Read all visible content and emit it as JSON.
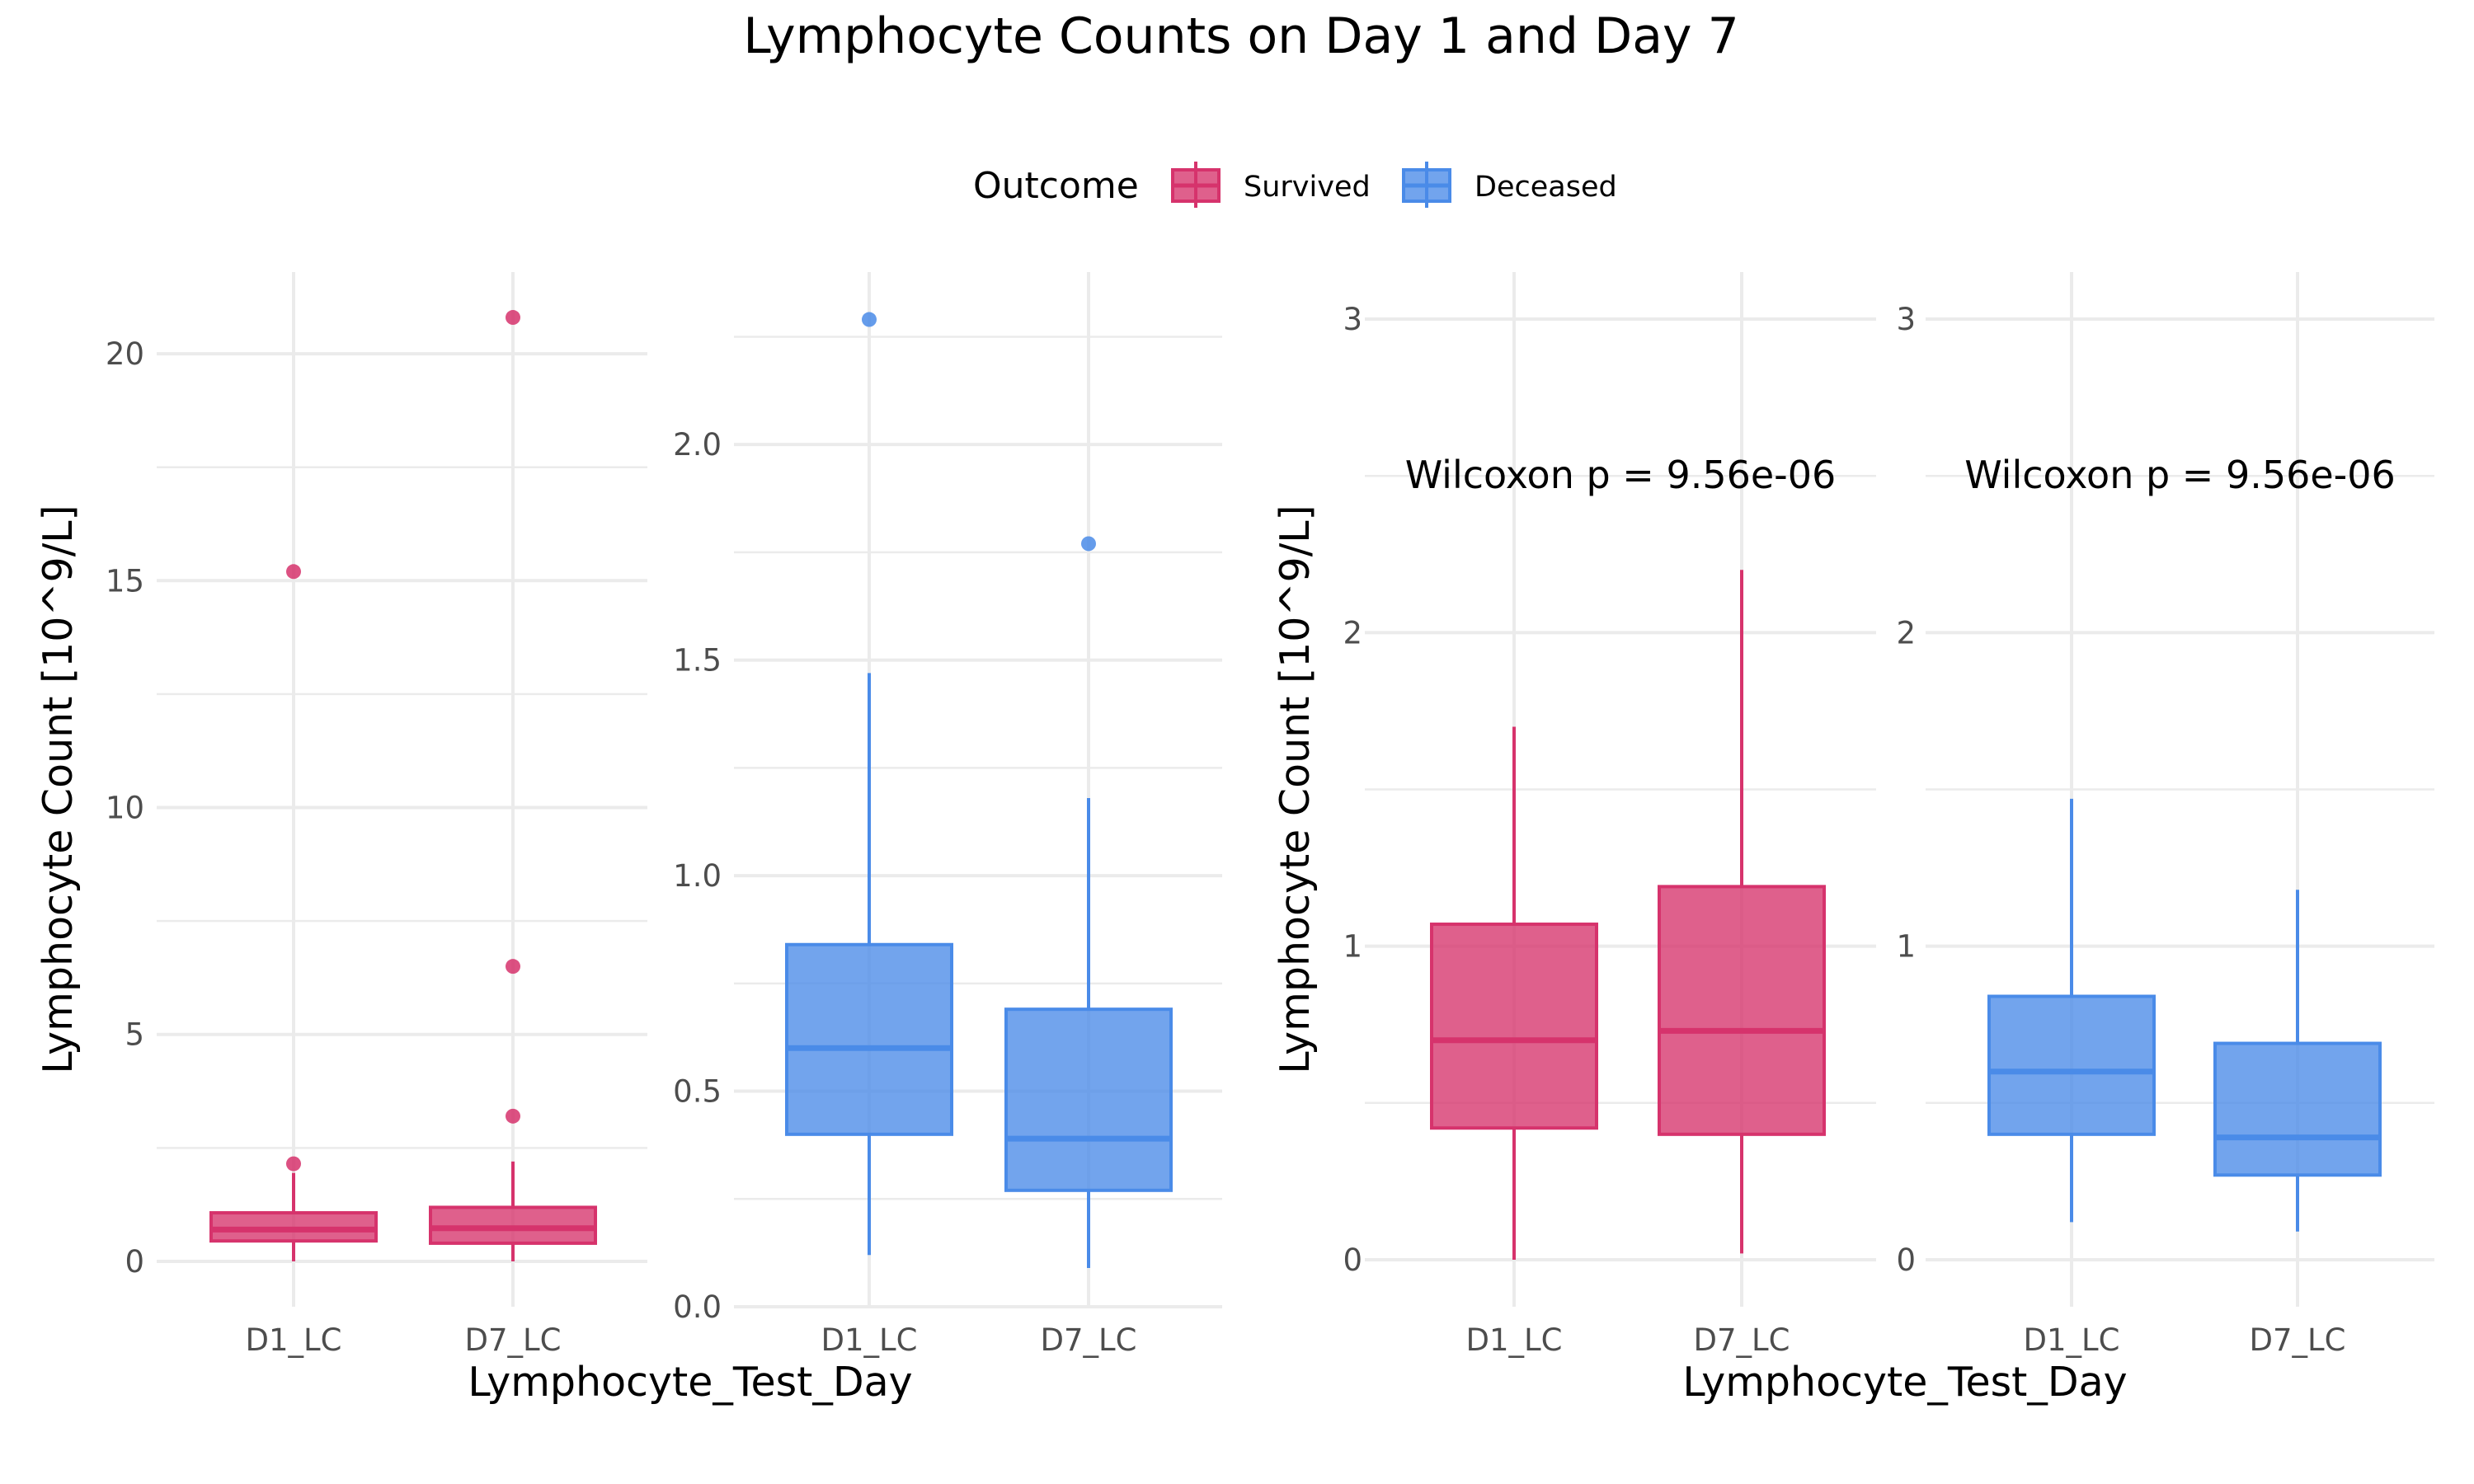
{
  "figure": {
    "title": "Lymphocyte Counts on Day 1 and Day 7",
    "legend": {
      "title": "Outcome",
      "position": "top",
      "items": [
        {
          "label": "Survived",
          "color": "#D6336C"
        },
        {
          "label": "Deceased",
          "color": "#4A8BE8"
        }
      ]
    }
  },
  "chart_data": [
    {
      "type": "box",
      "ylabel": "Lymphocyte Count [10^9/L]",
      "xlabel": "",
      "ylim": [
        -1,
        21.8
      ],
      "yticks": [
        0,
        5,
        10,
        15,
        20
      ],
      "grid": true,
      "color": "#D6336C",
      "annotation": "",
      "categories": [
        "D1_LC",
        "D7_LC"
      ],
      "boxes": [
        {
          "category": "D1_LC",
          "q1": 0.45,
          "median": 0.7,
          "q3": 1.07,
          "whisker_low": 0,
          "whisker_high": 1.95,
          "outliers": [
            2.15,
            15.2
          ]
        },
        {
          "category": "D7_LC",
          "q1": 0.4,
          "median": 0.73,
          "q3": 1.19,
          "whisker_low": 0,
          "whisker_high": 2.2,
          "outliers": [
            3.2,
            6.5,
            20.8
          ]
        }
      ]
    },
    {
      "type": "box",
      "ylabel": "",
      "xlabel": "",
      "ylim": [
        0,
        2.4
      ],
      "yticks": [
        0.0,
        0.5,
        1.0,
        1.5,
        2.0
      ],
      "ytick_labels": [
        "0.0",
        "0.5",
        "1.0",
        "1.5",
        "2.0"
      ],
      "grid": true,
      "color": "#4A8BE8",
      "annotation": "",
      "categories": [
        "D1_LC",
        "D7_LC"
      ],
      "boxes": [
        {
          "category": "D1_LC",
          "q1": 0.4,
          "median": 0.6,
          "q3": 0.84,
          "whisker_low": 0.12,
          "whisker_high": 1.47,
          "outliers": [
            2.29
          ]
        },
        {
          "category": "D7_LC",
          "q1": 0.27,
          "median": 0.39,
          "q3": 0.69,
          "whisker_low": 0.09,
          "whisker_high": 1.18,
          "outliers": [
            1.77
          ]
        }
      ]
    },
    {
      "type": "box",
      "ylabel": "Lymphocyte Count [10^9/L]",
      "xlabel": "",
      "ylim": [
        -0.15,
        3.15
      ],
      "yticks": [
        0,
        1,
        2,
        3
      ],
      "grid": true,
      "color": "#D6336C",
      "annotation": "Wilcoxon p = 9.56e-06",
      "annotation_y": 2.5,
      "categories": [
        "D1_LC",
        "D7_LC"
      ],
      "boxes": [
        {
          "category": "D1_LC",
          "q1": 0.42,
          "median": 0.7,
          "q3": 1.07,
          "whisker_low": 0,
          "whisker_high": 1.7,
          "outliers": []
        },
        {
          "category": "D7_LC",
          "q1": 0.4,
          "median": 0.73,
          "q3": 1.19,
          "whisker_low": 0.02,
          "whisker_high": 2.2,
          "outliers": []
        }
      ]
    },
    {
      "type": "box",
      "ylabel": "",
      "xlabel": "",
      "ylim": [
        -0.15,
        3.15
      ],
      "yticks": [
        0,
        1,
        2,
        3
      ],
      "grid": true,
      "color": "#4A8BE8",
      "annotation": "Wilcoxon p = 9.56e-06",
      "annotation_y": 2.5,
      "categories": [
        "D1_LC",
        "D7_LC"
      ],
      "boxes": [
        {
          "category": "D1_LC",
          "q1": 0.4,
          "median": 0.6,
          "q3": 0.84,
          "whisker_low": 0.12,
          "whisker_high": 1.47,
          "outliers": []
        },
        {
          "category": "D7_LC",
          "q1": 0.27,
          "median": 0.39,
          "q3": 0.69,
          "whisker_low": 0.09,
          "whisker_high": 1.18,
          "outliers": []
        }
      ]
    }
  ],
  "shared_xlabels": [
    "Lymphocyte_Test_Day",
    "Lymphocyte_Test_Day"
  ]
}
